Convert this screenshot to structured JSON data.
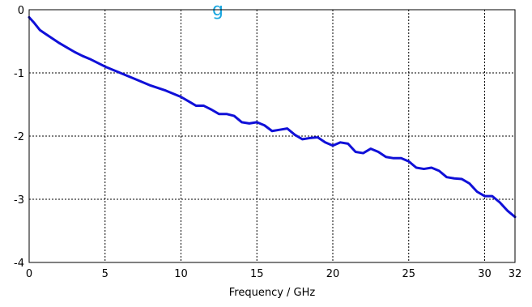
{
  "chart_data": {
    "type": "line",
    "title": "",
    "title_fragment": "g",
    "title_color": "#1aa7e0",
    "xlabel": "Frequency / GHz",
    "ylabel": "",
    "xlim": [
      0,
      32
    ],
    "ylim": [
      -4,
      0
    ],
    "x_ticks": [
      0,
      5,
      10,
      15,
      20,
      25,
      30,
      32
    ],
    "y_ticks": [
      0,
      -1,
      -2,
      -3,
      -4
    ],
    "x_tick_labels": [
      "0",
      "5",
      "10",
      "15",
      "20",
      "25",
      "30",
      "32"
    ],
    "y_tick_labels": [
      "0",
      "-1",
      "-2",
      "-3",
      "-4"
    ],
    "grid": true,
    "grid_style": "dotted",
    "series_color": "#1010d8",
    "series": [
      {
        "name": "",
        "x": [
          0,
          0.3,
          0.7,
          1.0,
          1.5,
          2.0,
          2.5,
          3.0,
          3.5,
          4.0,
          5.0,
          6.0,
          7.0,
          8.0,
          9.0,
          10.0,
          10.5,
          11.0,
          11.5,
          12.0,
          12.5,
          13.0,
          13.5,
          14.0,
          14.5,
          15.0,
          15.5,
          16.0,
          16.5,
          17.0,
          17.5,
          18.0,
          18.5,
          19.0,
          19.5,
          20.0,
          20.5,
          21.0,
          21.5,
          22.0,
          22.5,
          23.0,
          23.5,
          24.0,
          24.5,
          25.0,
          25.5,
          26.0,
          26.5,
          27.0,
          27.5,
          28.0,
          28.5,
          29.0,
          29.5,
          30.0,
          30.5,
          31.0,
          31.5,
          32.0
        ],
        "y": [
          -0.12,
          -0.2,
          -0.32,
          -0.37,
          -0.45,
          -0.53,
          -0.6,
          -0.67,
          -0.73,
          -0.78,
          -0.9,
          -1.0,
          -1.1,
          -1.2,
          -1.28,
          -1.38,
          -1.45,
          -1.52,
          -1.52,
          -1.58,
          -1.65,
          -1.65,
          -1.68,
          -1.78,
          -1.8,
          -1.78,
          -1.83,
          -1.92,
          -1.9,
          -1.88,
          -1.98,
          -2.05,
          -2.03,
          -2.02,
          -2.1,
          -2.15,
          -2.1,
          -2.12,
          -2.25,
          -2.27,
          -2.2,
          -2.25,
          -2.33,
          -2.35,
          -2.35,
          -2.4,
          -2.5,
          -2.52,
          -2.5,
          -2.55,
          -2.65,
          -2.67,
          -2.68,
          -2.75,
          -2.88,
          -2.95,
          -2.95,
          -3.05,
          -3.18,
          -3.28
        ]
      }
    ]
  }
}
